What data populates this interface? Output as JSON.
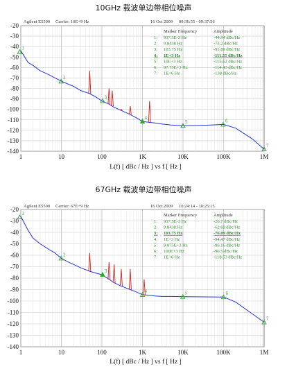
{
  "chart_data": [
    {
      "type": "line",
      "title": "10GHz 载波单边带相位噪声",
      "header": {
        "instrument": "Agilent E5500",
        "carrier": "Carrier: 10E+9 Hz",
        "date": "16 Oct 2009",
        "time": "09:36:55 - 09:37:56"
      },
      "xlabel": "L(f) [ dBc / Hz ] vs f [ Hz ]",
      "xscale": "log",
      "xlim": [
        1,
        1000000
      ],
      "ylim": [
        -140,
        -20
      ],
      "xticks": [
        {
          "v": 1,
          "label": "1"
        },
        {
          "v": 10,
          "label": "10"
        },
        {
          "v": 100,
          "label": "100"
        },
        {
          "v": 1000,
          "label": "1K"
        },
        {
          "v": 10000,
          "label": "10K"
        },
        {
          "v": 100000,
          "label": "100K"
        },
        {
          "v": 1000000,
          "label": "1M"
        }
      ],
      "yticks": [
        -20,
        -30,
        -40,
        -50,
        -60,
        -70,
        -80,
        -90,
        -100,
        -110,
        -120,
        -130,
        -140
      ],
      "grid": true,
      "table_header": {
        "freq": "Marker Frequency",
        "amp": "Amplitude"
      },
      "markers": [
        {
          "n": "1:",
          "freq": "937.5E-3 Hz",
          "amp": "-44.94 dBc/Hz",
          "f": 0.9375,
          "y": -44.94
        },
        {
          "n": "2:",
          "freq": "9.8438 Hz",
          "amp": "-73.2 dBc/Hz",
          "f": 9.8438,
          "y": -73.2
        },
        {
          "n": "3:",
          "freq": "103.75 Hz",
          "amp": "-91.89 dBc/Hz",
          "f": 103.75,
          "y": -91.89
        },
        {
          "n": "4:",
          "freq": "1E+3 Hz",
          "amp": "-111.55 dBc/Hz",
          "f": 1000,
          "y": -111.55,
          "active": true
        },
        {
          "n": "5:",
          "freq": "10E+3 Hz",
          "amp": "-115.62 dBc/Hz",
          "f": 10000,
          "y": -115.62
        },
        {
          "n": "6:",
          "freq": "97.75E+3 Hz",
          "amp": "-114.43 dBc/Hz",
          "f": 97750,
          "y": -114.43
        },
        {
          "n": "7:",
          "freq": "1E+6 Hz",
          "amp": "-138 dBc/Hz",
          "f": 1000000,
          "y": -138
        }
      ],
      "series": [
        {
          "color": "#2233cc",
          "x": [
            1,
            1.5,
            2,
            3,
            5,
            7,
            10,
            15,
            20,
            30,
            50,
            70,
            100,
            150,
            200,
            300,
            500,
            700,
            1000,
            1500,
            2000,
            3000,
            5000,
            10000,
            20000,
            50000,
            100000,
            200000,
            500000,
            1000000
          ],
          "y": [
            -44,
            -55,
            -58,
            -63,
            -67,
            -70,
            -73,
            -76,
            -78,
            -82,
            -85,
            -88,
            -92,
            -95,
            -98,
            -101,
            -105,
            -108,
            -111.5,
            -112.5,
            -113,
            -114,
            -115,
            -115.6,
            -115.5,
            -115,
            -114.4,
            -118,
            -128,
            -138
          ]
        },
        {
          "color": "#cc2222",
          "spurs": [
            {
              "f": 50,
              "y": -63
            },
            {
              "f": 150,
              "y": -80
            },
            {
              "f": 180,
              "y": -82
            },
            {
              "f": 300,
              "y": -100
            },
            {
              "f": 500,
              "y": -97
            },
            {
              "f": 1500,
              "y": -92
            }
          ]
        }
      ]
    },
    {
      "type": "line",
      "title": "67GHz 载波单边带相位噪声",
      "header": {
        "instrument": "Agilent E5500",
        "carrier": "Carrier: 67E+9 Hz",
        "date": "16 Oct 2009",
        "time": "10:24:14 - 10:25:15"
      },
      "xlabel": "L(f) [ dBc / Hz ] vs f [ Hz ]",
      "xscale": "log",
      "xlim": [
        1,
        1000000
      ],
      "ylim": [
        -140,
        -20
      ],
      "xticks": [
        {
          "v": 1,
          "label": "1"
        },
        {
          "v": 10,
          "label": "10"
        },
        {
          "v": 100,
          "label": "100"
        },
        {
          "v": 1000,
          "label": "1K"
        },
        {
          "v": 10000,
          "label": "10K"
        },
        {
          "v": 100000,
          "label": "100K"
        },
        {
          "v": 1000000,
          "label": "1M"
        }
      ],
      "yticks": [
        -20,
        -30,
        -40,
        -50,
        -60,
        -70,
        -80,
        -90,
        -100,
        -110,
        -120,
        -130,
        -140
      ],
      "grid": true,
      "table_header": {
        "freq": "Marker Frequency",
        "amp": "Amplitude"
      },
      "markers": [
        {
          "n": "1:",
          "freq": "937.5E-3 Hz",
          "amp": "-26.7 dBc/Hz",
          "f": 0.9375,
          "y": -26.7
        },
        {
          "n": "2:",
          "freq": "9.8438 Hz",
          "amp": "-62.69 dBc/Hz",
          "f": 9.8438,
          "y": -62.69
        },
        {
          "n": "3:",
          "freq": "103.75 Hz",
          "amp": "-76.89 dBc/Hz",
          "f": 103.75,
          "y": -76.89,
          "active": true
        },
        {
          "n": "4:",
          "freq": "1E+3 Hz",
          "amp": "-94.47 dBc/Hz",
          "f": 1000,
          "y": -94.47
        },
        {
          "n": "5:",
          "freq": "9.875E+3 Hz",
          "amp": "-96.16 dBc/Hz",
          "f": 9875,
          "y": -96.16
        },
        {
          "n": "6:",
          "freq": "100E+3 Hz",
          "amp": "-96.5 dBc/Hz",
          "f": 100000,
          "y": -96.5
        },
        {
          "n": "7:",
          "freq": "1E+6 Hz",
          "amp": "-118.53 dBc/Hz",
          "f": 1000000,
          "y": -118.53
        }
      ],
      "series": [
        {
          "color": "#2233cc",
          "x": [
            1,
            1.5,
            2,
            3,
            5,
            7,
            10,
            15,
            20,
            30,
            50,
            70,
            100,
            150,
            200,
            300,
            500,
            700,
            1000,
            1500,
            2000,
            3000,
            5000,
            10000,
            20000,
            50000,
            100000,
            200000,
            500000,
            1000000
          ],
          "y": [
            -26,
            -38,
            -45,
            -50,
            -55,
            -58,
            -62.7,
            -66,
            -68,
            -71,
            -74,
            -75.5,
            -77,
            -81,
            -84,
            -87,
            -90,
            -92,
            -94.5,
            -95,
            -95.5,
            -96,
            -96,
            -96.2,
            -96.3,
            -96.4,
            -96.5,
            -101,
            -111,
            -118.5
          ]
        },
        {
          "color": "#cc2222",
          "spurs": [
            {
              "f": 50,
              "y": -58
            },
            {
              "f": 150,
              "y": -66
            },
            {
              "f": 200,
              "y": -68
            },
            {
              "f": 300,
              "y": -72
            },
            {
              "f": 500,
              "y": -72
            },
            {
              "f": 1100,
              "y": -81
            }
          ]
        }
      ]
    }
  ]
}
